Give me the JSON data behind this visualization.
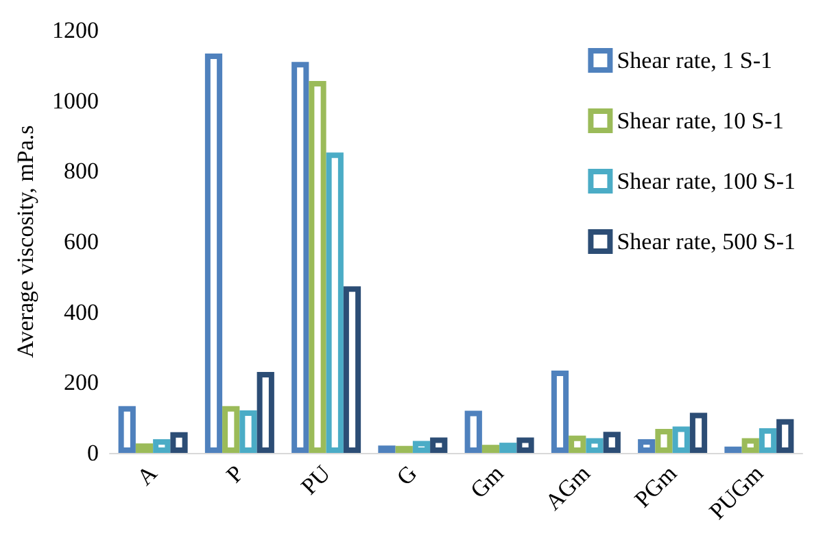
{
  "chart_data": {
    "type": "bar",
    "ylabel": "Average viscosity, mPa.s",
    "categories": [
      "A",
      "P",
      "PU",
      "G",
      "Gm",
      "AGm",
      "PGm",
      "PUGm"
    ],
    "series": [
      {
        "name": "Shear rate, 1 S-1",
        "color": "#4f81bd",
        "values": [
          133,
          1134,
          1110,
          21,
          120,
          234,
          39,
          18
        ]
      },
      {
        "name": "Shear rate, 10 S-1",
        "color": "#9bbb59",
        "values": [
          27,
          133,
          1056,
          20,
          23,
          49,
          68,
          42
        ]
      },
      {
        "name": "Shear rate, 100 S-1",
        "color": "#4bacc6",
        "values": [
          39,
          121,
          853,
          34,
          29,
          42,
          75,
          70
        ]
      },
      {
        "name": "Shear rate, 500 S-1",
        "color": "#2c4d75",
        "values": [
          59,
          230,
          473,
          44,
          44,
          60,
          114,
          96
        ]
      }
    ],
    "ylim": [
      0,
      1200
    ],
    "yticks": [
      0,
      200,
      400,
      600,
      800,
      1000,
      1200
    ],
    "grid": false,
    "legend": "top right"
  }
}
